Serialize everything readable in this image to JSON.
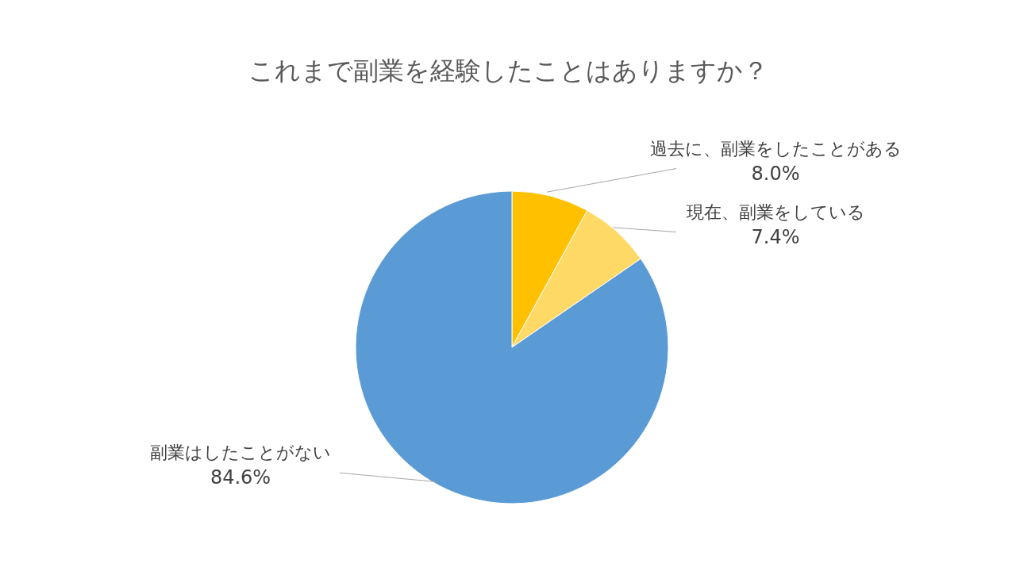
{
  "chart_data": {
    "type": "pie",
    "title": "これまで副業を経験したことはありますか？",
    "categories": [
      "過去に、副業をしたことがある",
      "現在、副業をしている",
      "副業はしたことがない"
    ],
    "values": [
      8.0,
      7.4,
      84.6
    ],
    "value_labels": [
      "8.0%",
      "7.4%",
      "84.6%"
    ],
    "colors": [
      "#ffc000",
      "#ffd966",
      "#5b9bd5"
    ],
    "legend": false
  }
}
